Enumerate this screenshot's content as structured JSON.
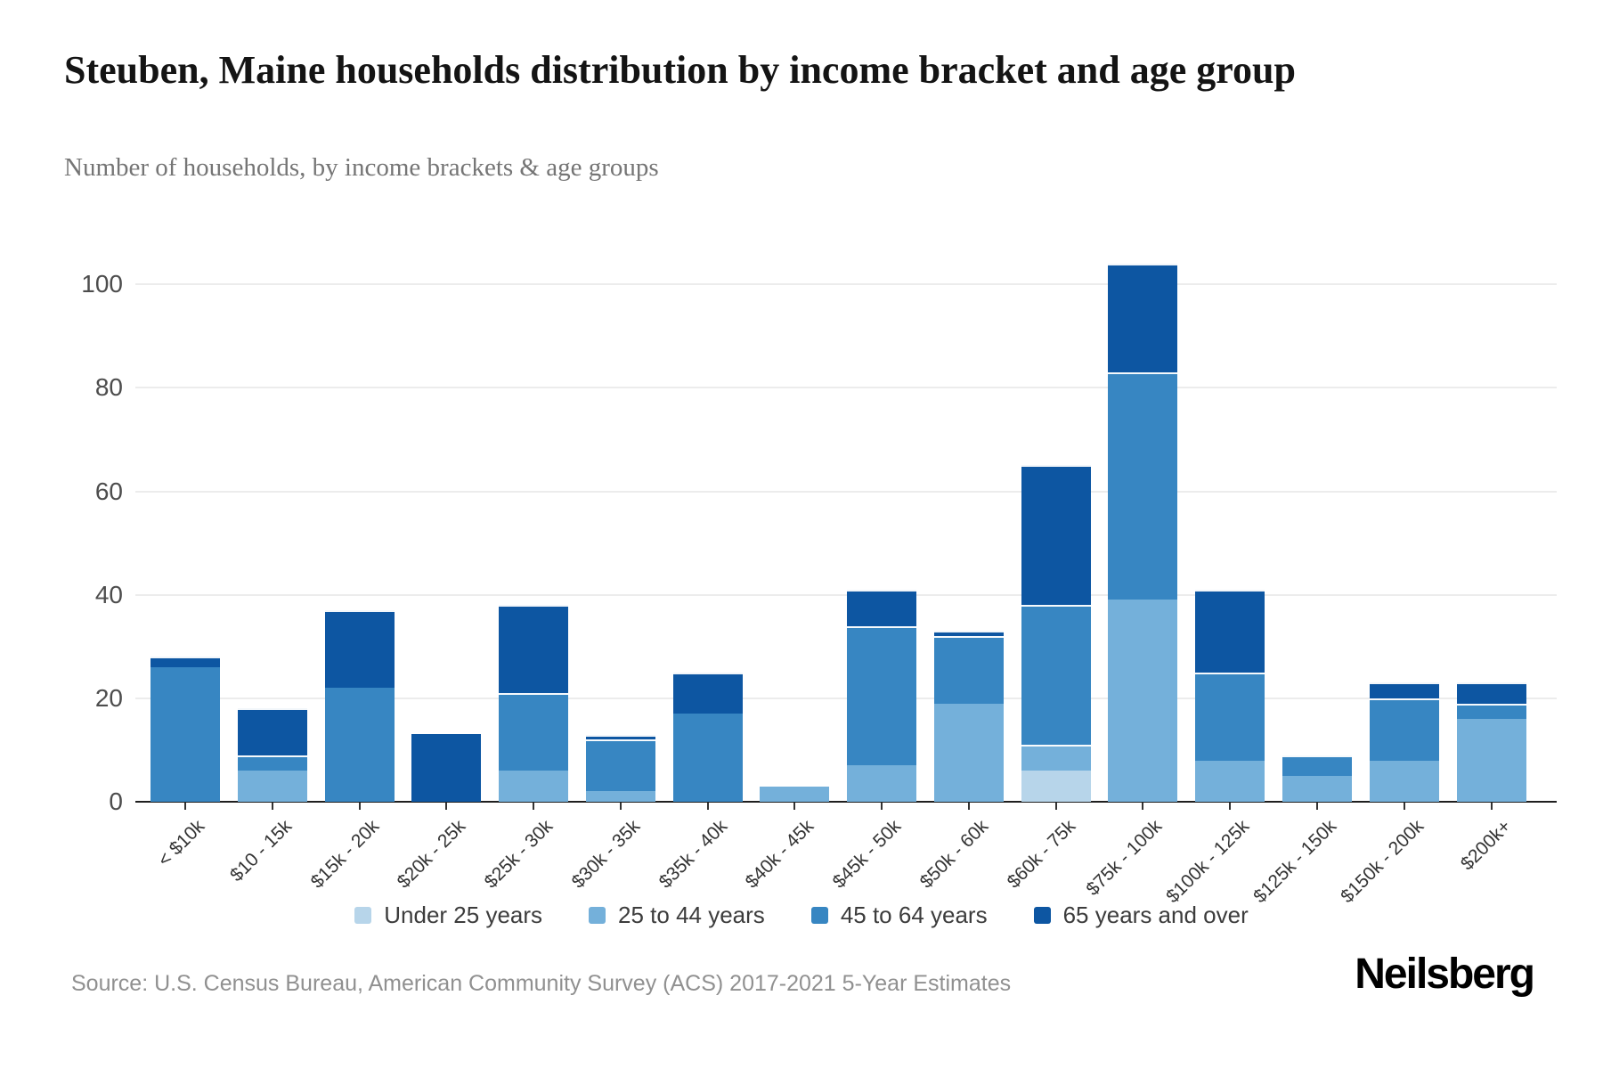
{
  "header": {
    "title": "Steuben, Maine households distribution by income bracket and age group",
    "subtitle": "Number of households, by income brackets & age groups"
  },
  "chart_data": {
    "type": "bar",
    "stacked": true,
    "title": "Steuben, Maine households distribution by income bracket and age group",
    "subtitle": "Number of households, by income brackets & age groups",
    "categories": [
      "< $10k",
      "$10 - 15k",
      "$15k - 20k",
      "$20k - 25k",
      "$25k - 30k",
      "$30k - 35k",
      "$35k - 40k",
      "$40k - 45k",
      "$45k - 50k",
      "$50k - 60k",
      "$60k - 75k",
      "$75k - 100k",
      "$100k - 125k",
      "$125k - 150k",
      "$150k - 200k",
      "$200k+"
    ],
    "series": [
      {
        "name": "Under 25 years",
        "color": "#b7d5ea",
        "values": [
          0,
          0,
          0,
          0,
          0,
          0,
          0,
          0,
          0,
          0,
          6,
          0,
          0,
          0,
          0,
          0
        ]
      },
      {
        "name": "25 to 44 years",
        "color": "#74b0da",
        "values": [
          0,
          6,
          0,
          0,
          6,
          2,
          0,
          3,
          7,
          19,
          5,
          39,
          8,
          5,
          8,
          16
        ]
      },
      {
        "name": "45 to 64 years",
        "color": "#3786c2",
        "values": [
          26,
          3,
          22,
          0,
          15,
          10,
          17,
          0,
          27,
          13,
          27,
          44,
          17,
          4,
          12,
          3
        ]
      },
      {
        "name": "65 years and over",
        "color": "#0d56a2",
        "values": [
          2,
          9,
          15,
          13,
          17,
          1,
          8,
          0,
          7,
          1,
          27,
          21,
          16,
          0,
          3,
          4
        ]
      }
    ],
    "totals": [
      28,
      18,
      37,
      13,
      38,
      13,
      25,
      3,
      41,
      33,
      65,
      104,
      41,
      9,
      23,
      23
    ],
    "ylabel": "",
    "xlabel": "",
    "ylim": [
      0,
      104
    ],
    "yticks": [
      0,
      20,
      40,
      60,
      80,
      100
    ],
    "grid": true,
    "legend_position": "bottom"
  },
  "footer": {
    "source": "Source: U.S. Census Bureau, American Community Survey (ACS) 2017-2021 5-Year Estimates",
    "brand": "Neilsberg"
  }
}
